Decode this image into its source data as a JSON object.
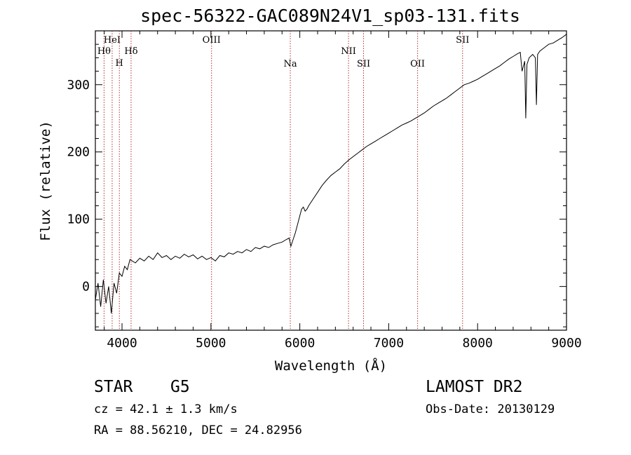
{
  "header": {
    "title": "spec-56322-GAC089N24V1_sp03-131.fits"
  },
  "info": {
    "class": "STAR",
    "subclass": "G5",
    "redshift": "cz = 42.1 ± 1.3 km/s",
    "coords": "RA =  88.56210, DEC =  24.82956",
    "survey": "LAMOST DR2",
    "obs_date": "Obs-Date: 20130129"
  },
  "chart_data": {
    "type": "line",
    "xlabel": "Wavelength (Å)",
    "ylabel": "Flux (relative)",
    "xlim": [
      3700,
      9000
    ],
    "ylim": [
      -65,
      380
    ],
    "x_ticks": [
      4000,
      5000,
      6000,
      7000,
      8000,
      9000
    ],
    "x_tick_labels": [
      "4000",
      "5000",
      "6000",
      "7000",
      "8000",
      "9000"
    ],
    "y_ticks": [
      0,
      100,
      200,
      300
    ],
    "y_tick_labels": [
      "0",
      "100",
      "200",
      "300"
    ],
    "grid": false,
    "line_color": "#000000",
    "marker_color": "#b03030",
    "spectral_lines": [
      {
        "label": "Hθ",
        "wavelength": 3798
      },
      {
        "label": "HeI",
        "wavelength": 3889
      },
      {
        "label": "H",
        "wavelength": 3970
      },
      {
        "label": "Hδ",
        "wavelength": 4102
      },
      {
        "label": "OIII",
        "wavelength": 5007
      },
      {
        "label": "Na",
        "wavelength": 5893
      },
      {
        "label": "NII",
        "wavelength": 6548
      },
      {
        "label": "SII",
        "wavelength": 6717
      },
      {
        "label": "OII",
        "wavelength": 7325
      },
      {
        "label": "SII",
        "wavelength": 7831
      }
    ],
    "series": [
      {
        "wavelength": [
          3700,
          3730,
          3760,
          3790,
          3820,
          3850,
          3880,
          3910,
          3940,
          3970,
          4000,
          4030,
          4060,
          4090,
          4150,
          4200,
          4250,
          4300,
          4350,
          4400,
          4450,
          4500,
          4550,
          4600,
          4650,
          4700,
          4750,
          4800,
          4850,
          4900,
          4950,
          5000,
          5050,
          5100,
          5150,
          5200,
          5250,
          5300,
          5350,
          5400,
          5450,
          5500,
          5550,
          5600,
          5650,
          5700,
          5750,
          5800,
          5850,
          5880,
          5900,
          5920,
          5950,
          5980,
          6000,
          6020,
          6040,
          6060,
          6080,
          6100,
          6150,
          6200,
          6250,
          6300,
          6350,
          6400,
          6450,
          6500,
          6550,
          6600,
          6650,
          6700,
          6750,
          6800,
          6850,
          6900,
          6950,
          7000,
          7050,
          7100,
          7150,
          7200,
          7250,
          7300,
          7350,
          7400,
          7450,
          7500,
          7550,
          7600,
          7650,
          7700,
          7750,
          7800,
          7850,
          7900,
          7950,
          8000,
          8050,
          8100,
          8150,
          8200,
          8250,
          8300,
          8350,
          8400,
          8450,
          8480,
          8500,
          8530,
          8542,
          8555,
          8580,
          8620,
          8650,
          8662,
          8675,
          8700,
          8750,
          8800,
          8850,
          8900,
          8950,
          9000
        ],
        "flux": [
          -20,
          5,
          -30,
          10,
          -25,
          0,
          -40,
          5,
          -10,
          20,
          15,
          30,
          25,
          40,
          35,
          42,
          38,
          45,
          40,
          50,
          43,
          46,
          40,
          45,
          42,
          48,
          44,
          47,
          41,
          45,
          40,
          43,
          38,
          46,
          44,
          50,
          48,
          52,
          50,
          55,
          52,
          58,
          56,
          60,
          58,
          62,
          64,
          66,
          70,
          72,
          60,
          68,
          80,
          95,
          105,
          115,
          118,
          112,
          115,
          120,
          130,
          140,
          150,
          158,
          165,
          170,
          175,
          182,
          188,
          193,
          198,
          203,
          208,
          212,
          216,
          220,
          224,
          228,
          232,
          236,
          240,
          243,
          246,
          250,
          254,
          258,
          263,
          268,
          272,
          276,
          280,
          285,
          290,
          295,
          300,
          302,
          305,
          308,
          312,
          316,
          320,
          324,
          328,
          333,
          338,
          342,
          346,
          348,
          320,
          335,
          250,
          330,
          340,
          345,
          340,
          270,
          345,
          350,
          355,
          360,
          362,
          366,
          370,
          375
        ]
      }
    ]
  }
}
